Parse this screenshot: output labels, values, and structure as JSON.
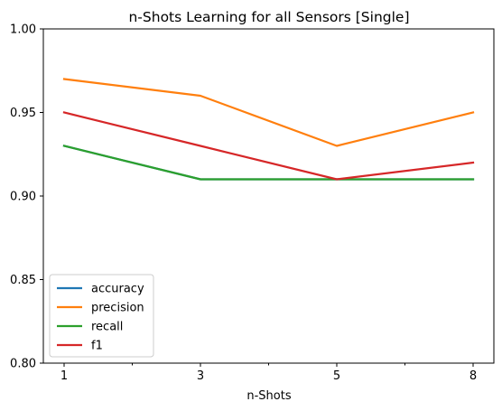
{
  "chart_data": {
    "type": "line",
    "title": "n-Shots Learning for all Sensors [Single]",
    "xlabel": "n-Shots",
    "ylabel": "",
    "categories": [
      "1",
      "3",
      "5",
      "8"
    ],
    "ylim": [
      0.8,
      1.0
    ],
    "yticks": [
      "0.80",
      "0.85",
      "0.90",
      "0.95",
      "1.00"
    ],
    "grid": false,
    "legend_position": "lower-left",
    "series": [
      {
        "name": "accuracy",
        "color": "#1f77b4",
        "values": [
          0.93,
          0.91,
          0.91,
          0.91
        ]
      },
      {
        "name": "precision",
        "color": "#ff7f0e",
        "values": [
          0.97,
          0.96,
          0.93,
          0.95
        ]
      },
      {
        "name": "recall",
        "color": "#2ca02c",
        "values": [
          0.93,
          0.91,
          0.91,
          0.91
        ]
      },
      {
        "name": "f1",
        "color": "#d62728",
        "values": [
          0.95,
          0.93,
          0.91,
          0.92
        ]
      }
    ]
  }
}
